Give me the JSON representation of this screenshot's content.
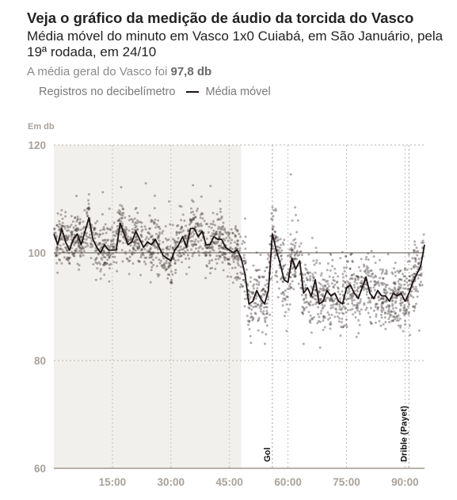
{
  "header": {
    "title": "Veja o gráfico da medição de áudio da torcida do Vasco",
    "subtitle": "Média móvel do minuto em Vasco 1x0 Cuiabá, em São Januário, pela 19ª rodada, em 24/10",
    "avg_prefix": "A média geral do Vasco foi ",
    "avg_value": "97,8 db"
  },
  "legend": {
    "points_label": "Registros no decibelímetro",
    "line_label": "Média móvel"
  },
  "colors": {
    "points": "#4a4040",
    "line": "#1e1416",
    "shade": "#f2f0ec",
    "axis_text": "#a8a29a"
  },
  "chart_data": {
    "type": "scatter",
    "ylabel": "Em db",
    "ylim": [
      60,
      120
    ],
    "xlim": [
      0,
      95
    ],
    "x_ticks": [
      15,
      30,
      45,
      60,
      75,
      90
    ],
    "x_tick_labels": [
      "15:00",
      "30:00",
      "45:00",
      "60:00",
      "75:00",
      "90:00"
    ],
    "y_ticks": [
      60,
      80,
      100,
      120
    ],
    "y_tick_labels": [
      "60",
      "80",
      "100",
      "120"
    ],
    "reference_line": 100,
    "shaded_region": [
      0,
      48
    ],
    "annotations": [
      {
        "x": 56,
        "label": "Gol"
      },
      {
        "x": 91,
        "label": "Drible (Payet)"
      }
    ],
    "series": [
      {
        "name": "Média móvel",
        "x": [
          0,
          1,
          2,
          3,
          4,
          5,
          6,
          7,
          8,
          9,
          10,
          11,
          12,
          13,
          14,
          15,
          16,
          17,
          18,
          19,
          20,
          21,
          22,
          23,
          24,
          25,
          26,
          27,
          28,
          29,
          30,
          31,
          32,
          33,
          34,
          35,
          36,
          37,
          38,
          39,
          40,
          41,
          42,
          43,
          44,
          45,
          46,
          47,
          48,
          49,
          50,
          51,
          52,
          53,
          54,
          55,
          56,
          57,
          58,
          59,
          60,
          61,
          62,
          63,
          64,
          65,
          66,
          67,
          68,
          69,
          70,
          71,
          72,
          73,
          74,
          75,
          76,
          77,
          78,
          79,
          80,
          81,
          82,
          83,
          84,
          85,
          86,
          87,
          88,
          89,
          90,
          91,
          92,
          93,
          94,
          95
        ],
        "values": [
          103.5,
          101.5,
          104.5,
          102.0,
          100.5,
          102.5,
          103.5,
          101.5,
          104.0,
          106.5,
          102.5,
          101.0,
          100.0,
          101.5,
          100.5,
          100.5,
          100.5,
          105.5,
          103.5,
          101.5,
          102.0,
          104.0,
          102.5,
          101.0,
          102.0,
          101.5,
          102.5,
          101.0,
          99.5,
          99.0,
          98.5,
          100.5,
          101.5,
          103.0,
          101.0,
          104.5,
          104.5,
          103.0,
          104.0,
          101.5,
          101.5,
          103.0,
          102.5,
          102.5,
          101.0,
          100.5,
          100.0,
          100.5,
          99.0,
          96.0,
          90.5,
          91.0,
          93.0,
          91.5,
          90.5,
          93.0,
          103.5,
          100.5,
          98.0,
          95.0,
          94.5,
          99.0,
          97.0,
          98.5,
          92.5,
          93.5,
          92.0,
          95.0,
          90.5,
          91.0,
          93.0,
          92.0,
          92.5,
          91.0,
          90.5,
          93.5,
          94.0,
          92.5,
          91.5,
          93.5,
          95.5,
          92.5,
          91.5,
          93.0,
          92.0,
          92.0,
          91.0,
          92.5,
          92.0,
          92.5,
          91.0,
          92.5,
          94.5,
          96.0,
          97.5,
          101.5
        ]
      },
      {
        "name": "Registros no decibelímetro",
        "note": "individual readings scatter around the moving average with 2-4 db spread and occasional outliers"
      }
    ]
  }
}
